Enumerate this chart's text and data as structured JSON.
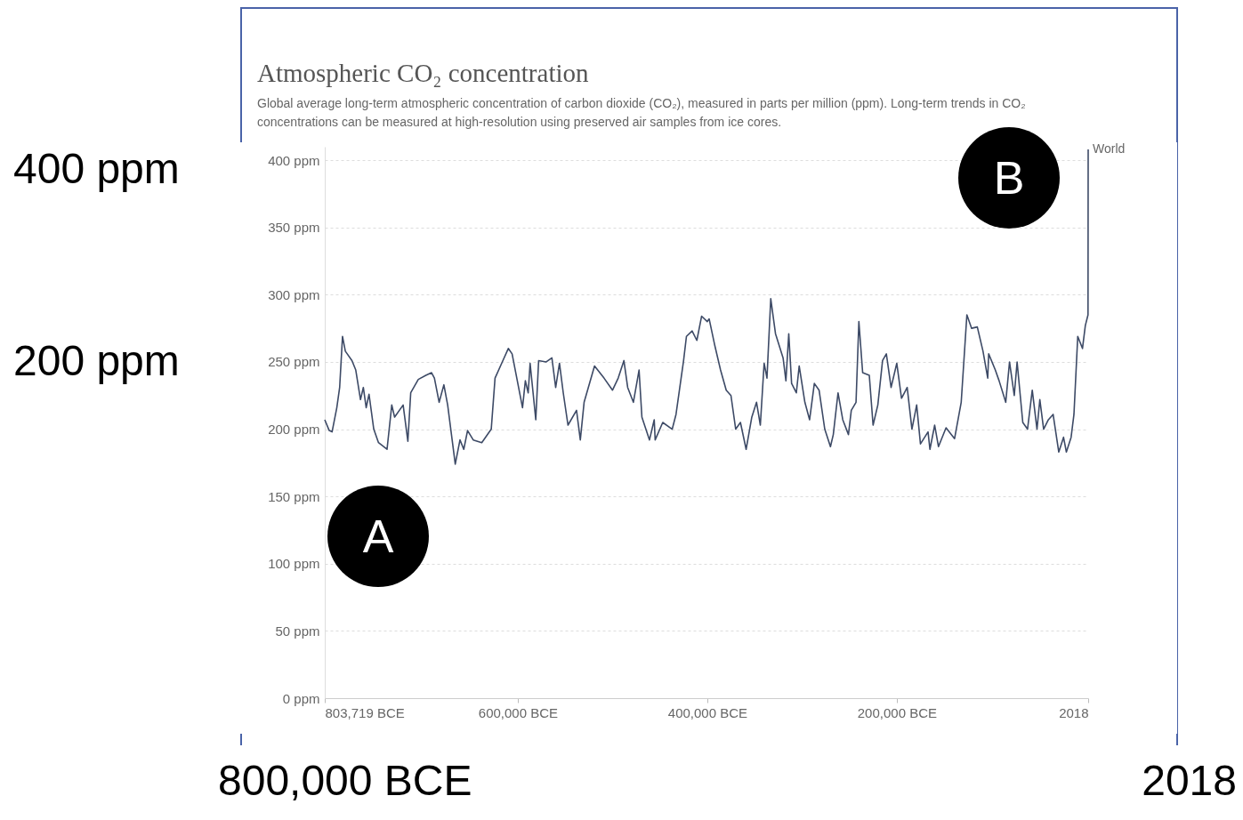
{
  "chart_data": {
    "type": "line",
    "title": "Atmospheric CO₂ concentration",
    "subtitle": "Global average long-term atmospheric concentration of carbon dioxide (CO₂), measured in parts per million (ppm). Long-term trends in CO₂ concentrations can be measured at high-resolution using preserved air samples from ice cores.",
    "annotations": [
      "A",
      "B",
      "400 ppm",
      "200 ppm",
      "800,000 BCE",
      "2018"
    ],
    "x": [
      -803719,
      -799000,
      -796000,
      -791000,
      -788000,
      -785000,
      -782000,
      -775000,
      -771000,
      -766000,
      -763000,
      -760000,
      -757000,
      -752000,
      -747000,
      -738000,
      -733000,
      -730000,
      -721000,
      -716000,
      -713000,
      -705000,
      -697000,
      -691000,
      -688000,
      -683000,
      -678000,
      -674000,
      -666000,
      -661000,
      -657000,
      -653000,
      -647000,
      -638000,
      -628000,
      -624000,
      -617000,
      -610000,
      -606000,
      -595000,
      -592000,
      -589000,
      -587000,
      -581000,
      -578000,
      -570000,
      -564000,
      -560000,
      -556000,
      -552000,
      -547000,
      -538000,
      -534000,
      -530000,
      -519000,
      -509000,
      -500000,
      -494000,
      -488000,
      -484000,
      -478000,
      -472000,
      -469000,
      -461000,
      -456000,
      -455000,
      -447000,
      -437000,
      -433000,
      -425000,
      -422000,
      -416000,
      -411000,
      -406000,
      -400000,
      -398000,
      -392000,
      -386000,
      -380000,
      -375000,
      -370000,
      -365000,
      -359000,
      -353000,
      -348000,
      -344000,
      -340000,
      -337000,
      -333000,
      -328000,
      -320000,
      -317000,
      -314000,
      -311000,
      -306000,
      -303000,
      -297000,
      -292000,
      -287000,
      -282000,
      -276000,
      -270000,
      -267000,
      -262000,
      -257000,
      -251000,
      -248000,
      -243000,
      -240000,
      -236000,
      -229000,
      -225000,
      -220000,
      -215000,
      -211000,
      -206000,
      -200000,
      -195000,
      -189000,
      -184000,
      -179000,
      -175000,
      -167000,
      -165000,
      -160000,
      -156000,
      -148000,
      -139000,
      -132000,
      -126000,
      -121000,
      -115000,
      -109000,
      -104000,
      -103000,
      -96000,
      -92000,
      -85000,
      -81000,
      -76000,
      -73000,
      -67000,
      -62000,
      -57000,
      -52000,
      -49000,
      -45000,
      -40000,
      -35000,
      -29000,
      -24000,
      -21000,
      -16000,
      -13000,
      -9000,
      -4000,
      -1000,
      1850,
      2018
    ],
    "series": [
      {
        "name": "World",
        "color": "#3d4a66",
        "values": [
          207,
          199,
          198,
          216,
          231,
          269,
          258,
          251,
          244,
          222,
          231,
          216,
          226,
          200,
          190,
          185,
          218,
          209,
          218,
          191,
          227,
          237,
          240,
          242,
          238,
          220,
          233,
          218,
          174,
          192,
          185,
          199,
          192,
          190,
          200,
          238,
          249,
          260,
          256,
          216,
          236,
          227,
          249,
          207,
          251,
          250,
          253,
          231,
          249,
          227,
          203,
          214,
          192,
          220,
          247,
          238,
          229,
          238,
          251,
          231,
          220,
          244,
          209,
          192,
          207,
          192,
          205,
          200,
          211,
          251,
          269,
          273,
          266,
          284,
          280,
          282,
          262,
          244,
          229,
          225,
          200,
          205,
          185,
          209,
          220,
          203,
          249,
          238,
          297,
          271,
          253,
          236,
          271,
          234,
          227,
          247,
          220,
          207,
          234,
          229,
          200,
          187,
          196,
          227,
          207,
          196,
          214,
          220,
          280,
          242,
          240,
          203,
          218,
          251,
          256,
          231,
          249,
          223,
          231,
          200,
          218,
          189,
          198,
          185,
          203,
          187,
          201,
          193,
          220,
          285,
          275,
          276,
          258,
          238,
          256,
          244,
          236,
          220,
          250,
          225,
          250,
          205,
          200,
          229,
          200,
          222,
          200,
          207,
          211,
          183,
          194,
          183,
          194,
          211,
          269,
          260,
          277,
          285,
          408
        ]
      }
    ],
    "xlim": [
      -803719,
      2018
    ],
    "xticks": [
      {
        "value": -803719,
        "label": "803,719 BCE"
      },
      {
        "value": -600000,
        "label": "600,000 BCE"
      },
      {
        "value": -400000,
        "label": "400,000 BCE"
      },
      {
        "value": -200000,
        "label": "200,000 BCE"
      },
      {
        "value": 2018,
        "label": "2018"
      }
    ],
    "ylim": [
      0,
      410
    ],
    "yticks": [
      {
        "value": 0,
        "label": "0 ppm"
      },
      {
        "value": 50,
        "label": "50 ppm"
      },
      {
        "value": 100,
        "label": "100 ppm"
      },
      {
        "value": 150,
        "label": "150 ppm"
      },
      {
        "value": 200,
        "label": "200 ppm"
      },
      {
        "value": 250,
        "label": "250 ppm"
      },
      {
        "value": 300,
        "label": "300 ppm"
      },
      {
        "value": 350,
        "label": "350 ppm"
      },
      {
        "value": 400,
        "label": "400 ppm"
      }
    ],
    "grid": "y",
    "line_style": "solid"
  }
}
